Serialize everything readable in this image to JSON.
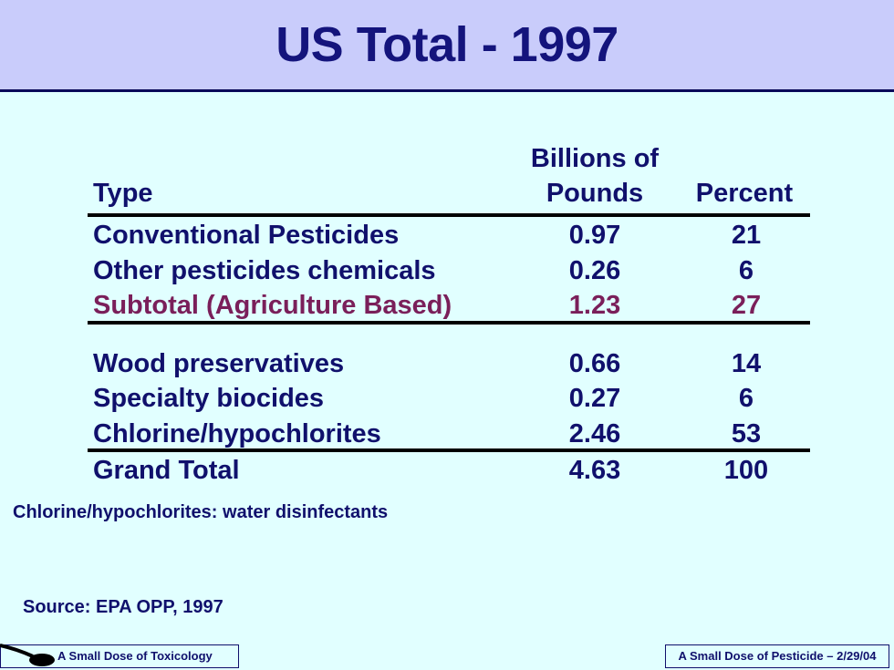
{
  "title": "US Total - 1997",
  "columns": {
    "type": "Type",
    "pounds_line1": "Billions of",
    "pounds_line2": "Pounds",
    "percent": "Percent"
  },
  "rows": [
    {
      "type": "Conventional Pesticides",
      "pounds": "0.97",
      "percent": "21"
    },
    {
      "type": "Other pesticides chemicals",
      "pounds": "0.26",
      "percent": "6"
    },
    {
      "type": "Subtotal (Agriculture Based)",
      "pounds": "1.23",
      "percent": "27"
    },
    {
      "type": "Wood preservatives",
      "pounds": "0.66",
      "percent": "14"
    },
    {
      "type": "Specialty biocides",
      "pounds": "0.27",
      "percent": "6"
    },
    {
      "type": "Chlorine/hypochlorites",
      "pounds": "2.46",
      "percent": "53"
    },
    {
      "type": "Grand Total",
      "pounds": "4.63",
      "percent": "100"
    }
  ],
  "note": "Chlorine/hypochlorites: water disinfectants",
  "source": "Source: EPA OPP, 1997",
  "footer": {
    "left": "A Small Dose of Toxicology",
    "right": "A Small Dose of Pesticide – 2/29/04",
    "logo_icon": "spoon-icon"
  },
  "colors": {
    "title_band": "#c9ccfb",
    "background": "#e1ffff",
    "text": "#10106c",
    "subtotal": "#7a1f5a"
  }
}
